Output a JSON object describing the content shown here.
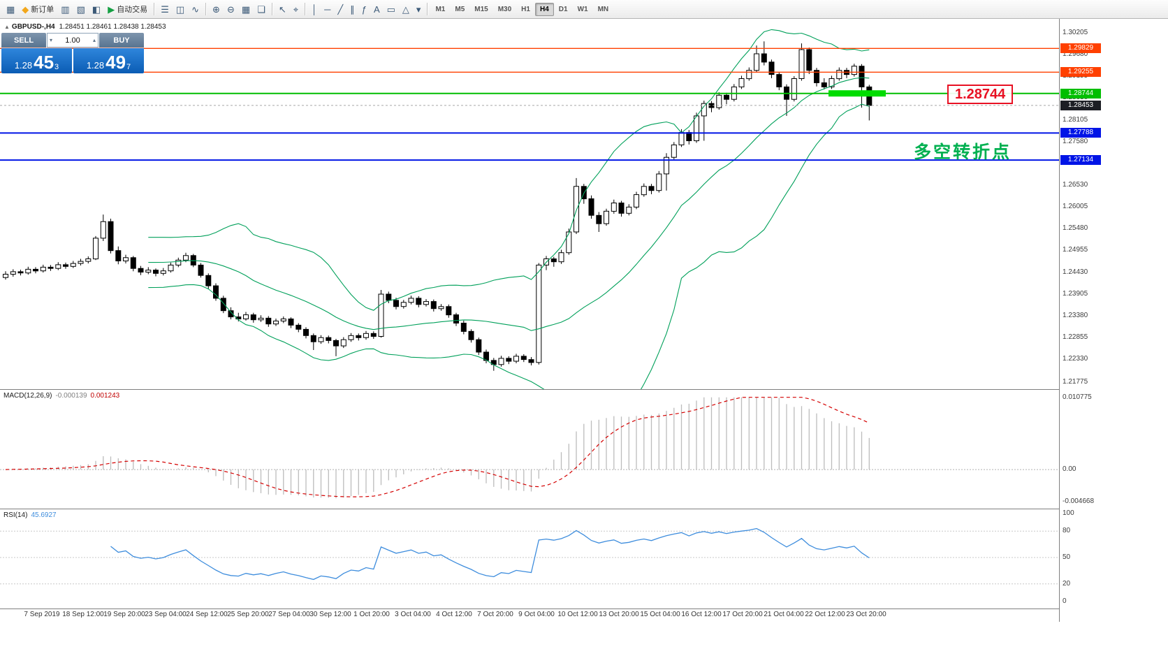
{
  "toolbar": {
    "groups": [
      {
        "items": [
          {
            "name": "new-chart",
            "glyph": "▦"
          },
          {
            "name": "new-order",
            "glyph": "◆",
            "glyph_color": "#f2a71b",
            "label": "新订单"
          },
          {
            "name": "profiles",
            "glyph": "▥"
          },
          {
            "name": "charts",
            "glyph": "▧"
          },
          {
            "name": "market-watch",
            "glyph": "◧"
          },
          {
            "name": "auto-trading",
            "glyph": "▶",
            "glyph_color": "#15a043",
            "label": "自动交易"
          }
        ]
      },
      {
        "items": [
          {
            "name": "bar-chart",
            "glyph": "☰"
          },
          {
            "name": "candlestick-chart",
            "glyph": "◫"
          },
          {
            "name": "line-chart",
            "glyph": "∿"
          }
        ]
      },
      {
        "items": [
          {
            "name": "zoom-in",
            "glyph": "⊕"
          },
          {
            "name": "zoom-out",
            "glyph": "⊖"
          },
          {
            "name": "grid",
            "glyph": "▦"
          },
          {
            "name": "tile-windows",
            "glyph": "❏"
          }
        ]
      },
      {
        "items": [
          {
            "name": "cursor",
            "glyph": "↖"
          },
          {
            "name": "crosshair",
            "glyph": "⌖"
          }
        ]
      },
      {
        "items": [
          {
            "name": "vertical-line",
            "glyph": "│"
          },
          {
            "name": "horizontal-line",
            "glyph": "─"
          },
          {
            "name": "trendline",
            "glyph": "╱"
          },
          {
            "name": "equidistant-channel",
            "glyph": "∥"
          },
          {
            "name": "fibonacci",
            "glyph": "ƒ"
          },
          {
            "name": "text",
            "glyph": "A"
          },
          {
            "name": "arrow-label",
            "glyph": "▭"
          },
          {
            "name": "shapes",
            "glyph": "△"
          },
          {
            "name": "shapes-dropdown",
            "glyph": "▾"
          }
        ]
      },
      {
        "type": "timeframes",
        "items": [
          {
            "name": "tf-m1",
            "label": "M1"
          },
          {
            "name": "tf-m5",
            "label": "M5"
          },
          {
            "name": "tf-m15",
            "label": "M15"
          },
          {
            "name": "tf-m30",
            "label": "M30"
          },
          {
            "name": "tf-h1",
            "label": "H1"
          },
          {
            "name": "tf-h4",
            "label": "H4",
            "active": true
          },
          {
            "name": "tf-d1",
            "label": "D1"
          },
          {
            "name": "tf-w1",
            "label": "W1"
          },
          {
            "name": "tf-mn",
            "label": "MN"
          }
        ]
      }
    ]
  },
  "chart": {
    "symbol_line": {
      "symbol": "GBPUSD-,H4",
      "quotes": "1.28451 1.28461 1.28438 1.28453"
    },
    "one_click": {
      "sell_label": "SELL",
      "buy_label": "BUY",
      "volume": "1.00",
      "sell_price": {
        "prefix": "1.28",
        "big": "45",
        "sup": "3"
      },
      "buy_price": {
        "prefix": "1.28",
        "big": "49",
        "sup": "7"
      }
    },
    "annotations": {
      "level_box": "1.28744",
      "turning_point": "多空转折点"
    }
  },
  "macd": {
    "title": "MACD(12,26,9)",
    "value_main": "-0.000139",
    "value_signal": "0.001243",
    "scale_labels": [
      "0.010775",
      "0.00",
      "-0.004668"
    ]
  },
  "rsi": {
    "title": "RSI(14)",
    "value": "45.6927",
    "scale_labels": [
      "100",
      "80",
      "50",
      "20",
      "0"
    ],
    "levels": [
      80,
      50,
      20
    ]
  },
  "chart_data": {
    "type": "candlestick",
    "symbol": "GBPUSD-",
    "timeframe": "H4",
    "current_bid": "1.28453",
    "price_axis": {
      "min": 1.21775,
      "max": 1.30205,
      "tick_labels": [
        "1.30205",
        "1.29680",
        "1.29155",
        "1.28630",
        "1.28105",
        "1.27580",
        "1.27055",
        "1.26530",
        "1.26005",
        "1.25480",
        "1.24955",
        "1.24430",
        "1.23905",
        "1.23380",
        "1.22855",
        "1.22330",
        "1.21775"
      ]
    },
    "time_labels": [
      "7 Sep 2019",
      "18 Sep 12:00",
      "19 Sep 20:00",
      "23 Sep 04:00",
      "24 Sep 12:00",
      "25 Sep 20:00",
      "27 Sep 04:00",
      "30 Sep 12:00",
      "1 Oct 20:00",
      "3 Oct 04:00",
      "4 Oct 12:00",
      "7 Oct 20:00",
      "9 Oct 04:00",
      "10 Oct 12:00",
      "13 Oct 20:00",
      "15 Oct 04:00",
      "16 Oct 12:00",
      "17 Oct 20:00",
      "21 Oct 04:00",
      "22 Oct 12:00",
      "23 Oct 20:00"
    ],
    "horizontal_lines": [
      {
        "name": "resistance-1",
        "label": "1.29829",
        "price": 1.29829,
        "color": "#FF4000",
        "width": 1.4
      },
      {
        "name": "resistance-2",
        "label": "1.29255",
        "price": 1.29255,
        "color": "#FF4000",
        "width": 1.4
      },
      {
        "name": "key-level",
        "label": "1.28744",
        "price": 1.28744,
        "color": "#00BE00",
        "width": 2
      },
      {
        "name": "current-price",
        "label": "1.28453",
        "price": 1.28453,
        "color": "#1c1e24",
        "width": 1,
        "style": "dotted"
      },
      {
        "name": "support-1",
        "label": "1.27788",
        "price": 1.27788,
        "color": "#0014E6",
        "width": 2
      },
      {
        "name": "support-2",
        "label": "1.27134",
        "price": 1.27134,
        "color": "#0014E6",
        "width": 2
      }
    ],
    "highlight_zone": {
      "price": 1.28744,
      "color": "#00DC00"
    },
    "bollinger": {
      "period": 20,
      "deviation": 2,
      "color": "#00A05A"
    },
    "indicators": [
      {
        "type": "MACD",
        "params": "12,26,9",
        "current": [
          "-0.000139",
          "0.001243"
        ],
        "scale_max": 0.010775,
        "scale_min": -0.004668,
        "histogram_color": "#bcbcbc",
        "signal_color": "#d40000",
        "signal_style": "dashed"
      },
      {
        "type": "RSI",
        "params": "14",
        "current": 45.6927,
        "scale": [
          0,
          100
        ],
        "levels": [
          80,
          50,
          20
        ],
        "line_color": "#3e8ddd"
      }
    ],
    "candles": [
      [
        1.243,
        1.2445,
        1.2425,
        1.2438
      ],
      [
        1.2438,
        1.245,
        1.2432,
        1.2444
      ],
      [
        1.2444,
        1.2449,
        1.2435,
        1.2441
      ],
      [
        1.2441,
        1.2456,
        1.2437,
        1.245
      ],
      [
        1.245,
        1.2455,
        1.244,
        1.2446
      ],
      [
        1.2446,
        1.2461,
        1.2442,
        1.2455
      ],
      [
        1.2455,
        1.246,
        1.2446,
        1.2452
      ],
      [
        1.2452,
        1.2467,
        1.2448,
        1.2461
      ],
      [
        1.2461,
        1.2466,
        1.2451,
        1.2457
      ],
      [
        1.2457,
        1.247,
        1.2453,
        1.2464
      ],
      [
        1.2464,
        1.2475,
        1.2459,
        1.2469
      ],
      [
        1.2469,
        1.2481,
        1.2464,
        1.2475
      ],
      [
        1.2475,
        1.253,
        1.2472,
        1.2525
      ],
      [
        1.2525,
        1.2582,
        1.2518,
        1.2565
      ],
      [
        1.2565,
        1.2572,
        1.2488,
        1.2495
      ],
      [
        1.2495,
        1.2505,
        1.2462,
        1.247
      ],
      [
        1.247,
        1.2485,
        1.2464,
        1.2478
      ],
      [
        1.2478,
        1.2482,
        1.2445,
        1.2452
      ],
      [
        1.2452,
        1.2458,
        1.2436,
        1.2443
      ],
      [
        1.2443,
        1.2455,
        1.2438,
        1.2448
      ],
      [
        1.2448,
        1.2452,
        1.2433,
        1.244
      ],
      [
        1.244,
        1.2453,
        1.2435,
        1.2446
      ],
      [
        1.2446,
        1.2466,
        1.2442,
        1.246
      ],
      [
        1.246,
        1.2478,
        1.2455,
        1.2472
      ],
      [
        1.2472,
        1.249,
        1.2467,
        1.2483
      ],
      [
        1.2483,
        1.2487,
        1.2455,
        1.246
      ],
      [
        1.246,
        1.2465,
        1.243,
        1.2435
      ],
      [
        1.2435,
        1.244,
        1.2403,
        1.241
      ],
      [
        1.241,
        1.2416,
        1.2374,
        1.238
      ],
      [
        1.238,
        1.2386,
        1.2344,
        1.235
      ],
      [
        1.235,
        1.2358,
        1.2329,
        1.2335
      ],
      [
        1.2335,
        1.2345,
        1.2324,
        1.233
      ],
      [
        1.233,
        1.2347,
        1.2326,
        1.234
      ],
      [
        1.234,
        1.2345,
        1.2321,
        1.2328
      ],
      [
        1.2328,
        1.2339,
        1.2323,
        1.2332
      ],
      [
        1.2332,
        1.2337,
        1.2311,
        1.2318
      ],
      [
        1.2318,
        1.2331,
        1.2313,
        1.2325
      ],
      [
        1.2325,
        1.2336,
        1.232,
        1.233
      ],
      [
        1.233,
        1.2334,
        1.2308,
        1.2315
      ],
      [
        1.2315,
        1.232,
        1.2298,
        1.2305
      ],
      [
        1.2305,
        1.231,
        1.2283,
        1.229
      ],
      [
        1.229,
        1.2295,
        1.2255,
        1.2275
      ],
      [
        1.2275,
        1.2291,
        1.227,
        1.2285
      ],
      [
        1.2285,
        1.229,
        1.2271,
        1.2278
      ],
      [
        1.2278,
        1.2282,
        1.224,
        1.2265
      ],
      [
        1.2265,
        1.2286,
        1.226,
        1.228
      ],
      [
        1.228,
        1.2296,
        1.2275,
        1.229
      ],
      [
        1.229,
        1.2295,
        1.2278,
        1.2285
      ],
      [
        1.2285,
        1.2301,
        1.228,
        1.2295
      ],
      [
        1.2295,
        1.23,
        1.2282,
        1.2288
      ],
      [
        1.2288,
        1.24,
        1.2285,
        1.239
      ],
      [
        1.239,
        1.2396,
        1.2368,
        1.2375
      ],
      [
        1.2375,
        1.2381,
        1.2353,
        1.236
      ],
      [
        1.236,
        1.2376,
        1.2355,
        1.237
      ],
      [
        1.237,
        1.2386,
        1.2365,
        1.238
      ],
      [
        1.238,
        1.2385,
        1.2358,
        1.2365
      ],
      [
        1.2365,
        1.2378,
        1.236,
        1.2372
      ],
      [
        1.2372,
        1.2377,
        1.2348,
        1.2355
      ],
      [
        1.2355,
        1.2366,
        1.235,
        1.236
      ],
      [
        1.236,
        1.2365,
        1.2333,
        1.234
      ],
      [
        1.234,
        1.2345,
        1.2313,
        1.232
      ],
      [
        1.232,
        1.2326,
        1.2293,
        1.23
      ],
      [
        1.23,
        1.2305,
        1.2273,
        1.228
      ],
      [
        1.228,
        1.2285,
        1.2243,
        1.225
      ],
      [
        1.225,
        1.2256,
        1.2223,
        1.223
      ],
      [
        1.223,
        1.2236,
        1.2205,
        1.222
      ],
      [
        1.222,
        1.2241,
        1.2215,
        1.2235
      ],
      [
        1.2235,
        1.224,
        1.2221,
        1.2228
      ],
      [
        1.2228,
        1.2246,
        1.2223,
        1.224
      ],
      [
        1.224,
        1.2245,
        1.2226,
        1.2232
      ],
      [
        1.2232,
        1.2238,
        1.2218,
        1.2225
      ],
      [
        1.2225,
        1.2465,
        1.222,
        1.246
      ],
      [
        1.246,
        1.2482,
        1.2448,
        1.2475
      ],
      [
        1.2475,
        1.248,
        1.2456,
        1.2468
      ],
      [
        1.2468,
        1.2497,
        1.2463,
        1.249
      ],
      [
        1.249,
        1.2548,
        1.2485,
        1.254
      ],
      [
        1.254,
        1.267,
        1.2535,
        1.265
      ],
      [
        1.265,
        1.2656,
        1.2608,
        1.262
      ],
      [
        1.262,
        1.2628,
        1.2572,
        1.258
      ],
      [
        1.258,
        1.2588,
        1.254,
        1.256
      ],
      [
        1.256,
        1.2596,
        1.2555,
        1.259
      ],
      [
        1.259,
        1.2618,
        1.2584,
        1.261
      ],
      [
        1.261,
        1.2615,
        1.2577,
        1.2585
      ],
      [
        1.2585,
        1.2607,
        1.258,
        1.26
      ],
      [
        1.26,
        1.2637,
        1.2595,
        1.263
      ],
      [
        1.263,
        1.2657,
        1.2625,
        1.265
      ],
      [
        1.265,
        1.2656,
        1.2631,
        1.264
      ],
      [
        1.264,
        1.2687,
        1.2635,
        1.268
      ],
      [
        1.268,
        1.273,
        1.264,
        1.272
      ],
      [
        1.272,
        1.2757,
        1.2715,
        1.275
      ],
      [
        1.275,
        1.2788,
        1.2745,
        1.278
      ],
      [
        1.278,
        1.2786,
        1.2751,
        1.276
      ],
      [
        1.276,
        1.2828,
        1.2755,
        1.282
      ],
      [
        1.282,
        1.2857,
        1.276,
        1.285
      ],
      [
        1.285,
        1.2856,
        1.2829,
        1.284
      ],
      [
        1.284,
        1.2877,
        1.2835,
        1.287
      ],
      [
        1.287,
        1.2876,
        1.2848,
        1.286
      ],
      [
        1.286,
        1.2897,
        1.2855,
        1.289
      ],
      [
        1.289,
        1.2917,
        1.2885,
        1.291
      ],
      [
        1.291,
        1.2937,
        1.2905,
        1.293
      ],
      [
        1.293,
        1.299,
        1.2925,
        1.297
      ],
      [
        1.297,
        1.3,
        1.2942,
        1.295
      ],
      [
        1.295,
        1.2956,
        1.2911,
        1.292
      ],
      [
        1.292,
        1.2926,
        1.2882,
        1.289
      ],
      [
        1.289,
        1.2896,
        1.282,
        1.286
      ],
      [
        1.286,
        1.2916,
        1.2855,
        1.291
      ],
      [
        1.291,
        1.2995,
        1.2905,
        1.298
      ],
      [
        1.298,
        1.2985,
        1.2921,
        1.293
      ],
      [
        1.293,
        1.2936,
        1.2891,
        1.29
      ],
      [
        1.29,
        1.2911,
        1.2884,
        1.289
      ],
      [
        1.289,
        1.2917,
        1.2885,
        1.291
      ],
      [
        1.291,
        1.2937,
        1.2905,
        1.293
      ],
      [
        1.293,
        1.2936,
        1.2911,
        1.292
      ],
      [
        1.292,
        1.2946,
        1.2915,
        1.294
      ],
      [
        1.294,
        1.2945,
        1.284,
        1.289
      ],
      [
        1.289,
        1.2895,
        1.2809,
        1.28453
      ]
    ]
  }
}
